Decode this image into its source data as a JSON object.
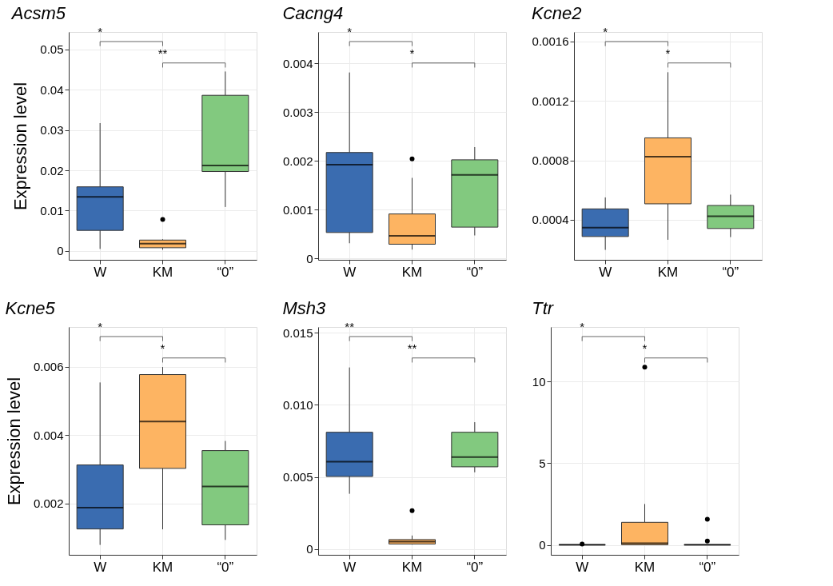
{
  "chart_data": [
    {
      "type": "box",
      "title": "Acsm5",
      "ylabel": "Expression level",
      "categories": [
        "W",
        "KM",
        "“0”"
      ],
      "colors": [
        "#3a6cb0",
        "#fdb462",
        "#82c97f"
      ],
      "ylim": [
        -0.0022,
        0.0543
      ],
      "yticks": [
        0,
        0.01,
        0.02,
        0.03,
        0.04,
        0.05
      ],
      "grid": true,
      "annotations": [
        "*",
        "**"
      ],
      "boxes": [
        {
          "low": 0.0005,
          "q1": 0.0051,
          "median": 0.0134,
          "q3": 0.0159,
          "high": 0.0317
        },
        {
          "low": 0.0003,
          "q1": 0.0008,
          "median": 0.0018,
          "q3": 0.0027,
          "high": 0.0029,
          "outliers": [
            0.0078
          ]
        },
        {
          "low": 0.0109,
          "q1": 0.0197,
          "median": 0.0212,
          "q3": 0.0386,
          "high": 0.0445
        }
      ]
    },
    {
      "type": "box",
      "title": "Cacng4",
      "categories": [
        "W",
        "KM",
        "“0”"
      ],
      "colors": [
        "#3a6cb0",
        "#fdb462",
        "#82c97f"
      ],
      "ylim": [
        -3e-05,
        0.00464
      ],
      "yticks": [
        0,
        0.001,
        0.002,
        0.003,
        0.004
      ],
      "grid": true,
      "annotations": [
        "*",
        "*"
      ],
      "boxes": [
        {
          "low": 0.00031,
          "q1": 0.00053,
          "median": 0.00192,
          "q3": 0.00217,
          "high": 0.00381
        },
        {
          "low": 0.00018,
          "q1": 0.00029,
          "median": 0.00046,
          "q3": 0.00091,
          "high": 0.00165,
          "outliers": [
            0.00204
          ]
        },
        {
          "low": 0.00047,
          "q1": 0.00064,
          "median": 0.00171,
          "q3": 0.00202,
          "high": 0.00228
        }
      ]
    },
    {
      "type": "box",
      "title": "Kcne2",
      "categories": [
        "W",
        "KM",
        "“0”"
      ],
      "colors": [
        "#3a6cb0",
        "#fdb462",
        "#82c97f"
      ],
      "ylim": [
        0.00013,
        0.001664
      ],
      "yticks": [
        0.0004,
        0.0008,
        0.0012,
        0.0016
      ],
      "grid": true,
      "annotations": [
        "*",
        "*"
      ],
      "boxes": [
        {
          "low": 0.000197,
          "q1": 0.000287,
          "median": 0.000347,
          "q3": 0.000473,
          "high": 0.00055
        },
        {
          "low": 0.000265,
          "q1": 0.000507,
          "median": 0.000825,
          "q3": 0.000951,
          "high": 0.001393
        },
        {
          "low": 0.000283,
          "q1": 0.000341,
          "median": 0.000424,
          "q3": 0.000496,
          "high": 0.000569
        }
      ]
    },
    {
      "type": "box",
      "title": "Kcne5",
      "ylabel": "Expression level",
      "categories": [
        "W",
        "KM",
        "“0”"
      ],
      "colors": [
        "#3a6cb0",
        "#fdb462",
        "#82c97f"
      ],
      "ylim": [
        0.000505,
        0.00716
      ],
      "yticks": [
        0.002,
        0.004,
        0.006
      ],
      "grid": true,
      "annotations": [
        "*",
        "*"
      ],
      "boxes": [
        {
          "low": 0.000795,
          "q1": 0.00126,
          "median": 0.00188,
          "q3": 0.00313,
          "high": 0.00554
        },
        {
          "low": 0.00125,
          "q1": 0.00303,
          "median": 0.0044,
          "q3": 0.00577,
          "high": 0.00599
        },
        {
          "low": 0.00094,
          "q1": 0.00138,
          "median": 0.0025,
          "q3": 0.00355,
          "high": 0.00383
        }
      ]
    },
    {
      "type": "box",
      "title": "Msh3",
      "categories": [
        "W",
        "KM",
        "“0”"
      ],
      "colors": [
        "#3a6cb0",
        "#fdb462",
        "#82c97f"
      ],
      "ylim": [
        -0.00041,
        0.01541
      ],
      "yticks": [
        0,
        0.005,
        {
          "value": 0.01,
          "label": "0.010"
        },
        0.015
      ],
      "grid": true,
      "annotations": [
        "**",
        "**"
      ],
      "boxes": [
        {
          "low": 0.00383,
          "q1": 0.00503,
          "median": 0.00605,
          "q3": 0.0081,
          "high": 0.0126
        },
        {
          "low": 0.0003,
          "q1": 0.00034,
          "median": 0.0005,
          "q3": 0.00065,
          "high": 0.00093,
          "outliers": [
            0.00266
          ]
        },
        {
          "low": 0.00532,
          "q1": 0.0057,
          "median": 0.00637,
          "q3": 0.0081,
          "high": 0.0088
        }
      ]
    },
    {
      "type": "box",
      "title": "Ttr",
      "categories": [
        "W",
        "KM",
        "“0”"
      ],
      "colors": [
        "#3a6cb0",
        "#fdb462",
        "#82c97f"
      ],
      "ylim": [
        -0.61,
        13.33
      ],
      "yticks": [
        0,
        5,
        10
      ],
      "grid": true,
      "annotations": [
        "*",
        "*"
      ],
      "boxes": [
        {
          "low": 0,
          "q1": 0,
          "median": 0,
          "q3": 0.01,
          "high": 0.02,
          "outliers": [
            0.05
          ]
        },
        {
          "low": 0,
          "q1": 0.01,
          "median": 0.1,
          "q3": 1.38,
          "high": 2.5,
          "outliers": [
            10.87
          ]
        },
        {
          "low": 0,
          "q1": 0,
          "median": 0,
          "q3": 0.01,
          "high": 0.01,
          "outliers": [
            1.57,
            0.23
          ]
        }
      ]
    }
  ]
}
